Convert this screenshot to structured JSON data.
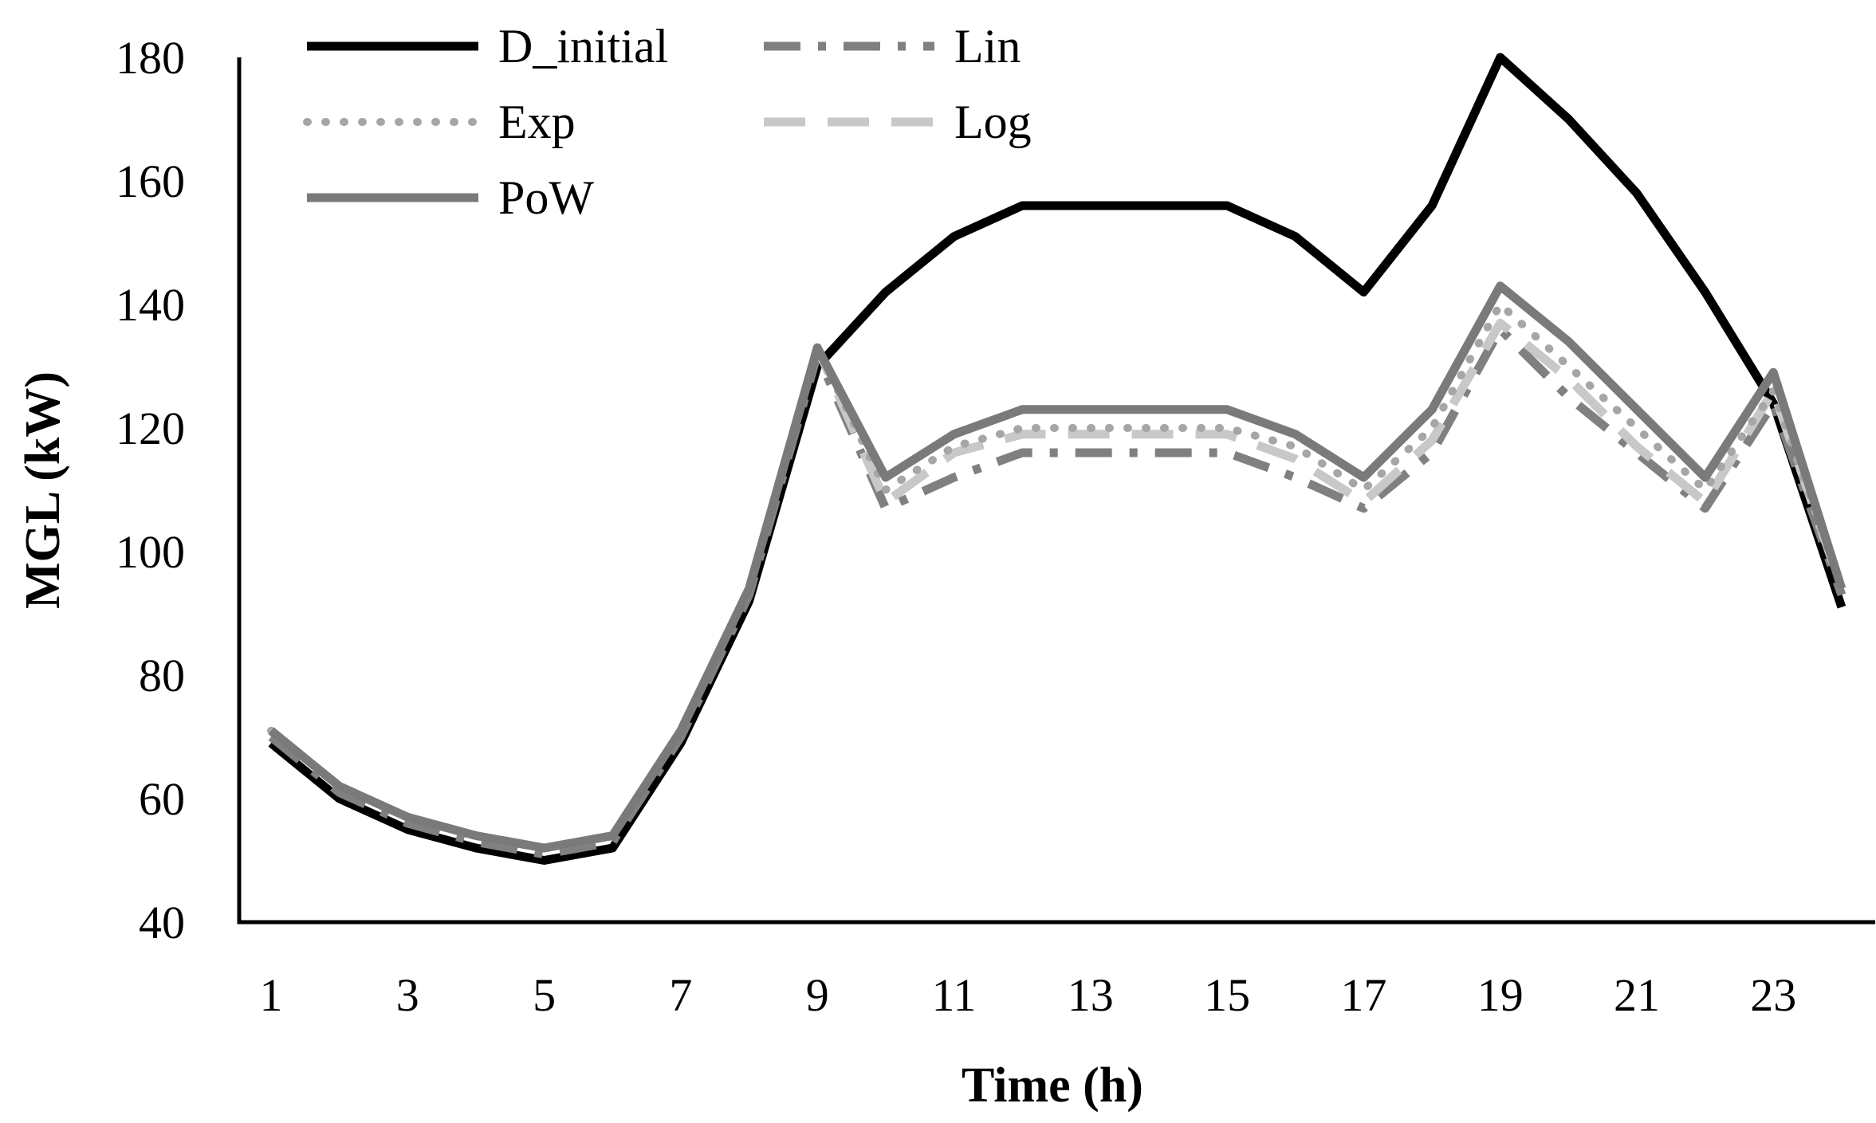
{
  "chart_data": {
    "type": "line",
    "title": "",
    "xlabel": "Time (h)",
    "ylabel": "MGL (kW)",
    "ylim": [
      40,
      180
    ],
    "yticks": [
      40,
      60,
      80,
      100,
      120,
      140,
      160,
      180
    ],
    "xlim": [
      1,
      24
    ],
    "xticks": [
      1,
      3,
      5,
      7,
      9,
      11,
      13,
      15,
      17,
      19,
      21,
      23
    ],
    "grid": false,
    "legend_position": "top-left",
    "x": [
      1,
      2,
      3,
      4,
      5,
      6,
      7,
      8,
      9,
      10,
      11,
      12,
      13,
      14,
      15,
      16,
      17,
      18,
      19,
      20,
      21,
      22,
      23,
      24
    ],
    "series": [
      {
        "name": "D_initial",
        "color": "#000000",
        "style": "solid",
        "values": [
          69,
          60,
          55,
          52,
          50,
          52,
          69,
          92,
          130,
          142,
          151,
          156,
          156,
          156,
          156,
          151,
          142,
          156,
          180,
          170,
          158,
          142,
          124,
          91
        ]
      },
      {
        "name": "Lin",
        "color": "#808080",
        "style": "dashdot",
        "values": [
          70,
          61,
          56,
          53,
          51,
          53,
          70,
          93,
          132,
          107,
          112,
          116,
          116,
          116,
          116,
          112,
          107,
          116,
          136,
          125,
          116,
          107,
          124,
          93
        ]
      },
      {
        "name": "Exp",
        "color": "#a6a6a6",
        "style": "dotted",
        "values": [
          71,
          62,
          57,
          54,
          52,
          54,
          71,
          94,
          133,
          110,
          117,
          120,
          120,
          120,
          120,
          117,
          110,
          120,
          140,
          130,
          120,
          110,
          126,
          94
        ]
      },
      {
        "name": "Log",
        "color": "#c8c8c8",
        "style": "dashed",
        "values": [
          71,
          62,
          57,
          54,
          52,
          54,
          71,
          94,
          133,
          108,
          116,
          119,
          119,
          119,
          119,
          115,
          108,
          118,
          137,
          128,
          117,
          108,
          126,
          94
        ]
      },
      {
        "name": "PoW",
        "color": "#7a7a7a",
        "style": "solid",
        "values": [
          71,
          62,
          57,
          54,
          52,
          54,
          71,
          94,
          133,
          112,
          119,
          123,
          123,
          123,
          123,
          119,
          112,
          123,
          143,
          134,
          123,
          112,
          129,
          94
        ]
      }
    ]
  }
}
